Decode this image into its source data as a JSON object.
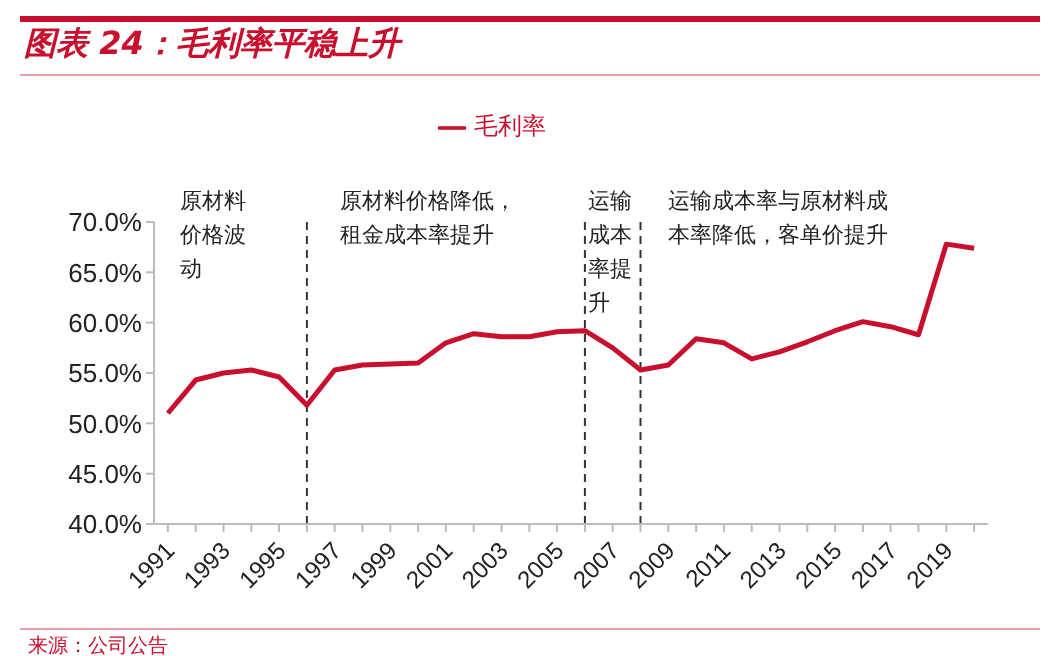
{
  "chart_data": {
    "type": "line",
    "title": "图表 24：毛利率平稳上升",
    "x": [
      1991,
      1992,
      1993,
      1994,
      1995,
      1996,
      1997,
      1998,
      1999,
      2000,
      2001,
      2002,
      2003,
      2004,
      2005,
      2006,
      2007,
      2008,
      2009,
      2010,
      2011,
      2012,
      2013,
      2014,
      2015,
      2016,
      2017,
      2018,
      2019,
      2020
    ],
    "series": [
      {
        "name": "毛利率",
        "color": "#c8102e",
        "values": [
          51.0,
          54.3,
          55.0,
          55.3,
          54.6,
          51.8,
          55.3,
          55.8,
          55.9,
          56.0,
          58.0,
          58.9,
          58.6,
          58.6,
          59.1,
          59.2,
          57.5,
          55.3,
          55.8,
          58.4,
          58.0,
          56.4,
          57.1,
          58.1,
          59.2,
          60.1,
          59.6,
          58.8,
          67.8,
          67.4
        ]
      }
    ],
    "xlim": [
      1990.5,
      2020.5
    ],
    "xticks": [
      1991,
      {
        "value": 1992,
        "label": null
      },
      1993,
      {
        "value": 1994,
        "label": null
      },
      1995,
      {
        "value": 1996,
        "label": null
      },
      1997,
      {
        "value": 1998,
        "label": null
      },
      1999,
      {
        "value": 2000,
        "label": null
      },
      2001,
      {
        "value": 2002,
        "label": null
      },
      2003,
      {
        "value": 2004,
        "label": null
      },
      2005,
      {
        "value": 2006,
        "label": null
      },
      2007,
      {
        "value": 2008,
        "label": null
      },
      2009,
      {
        "value": 2010,
        "label": null
      },
      2011,
      {
        "value": 2012,
        "label": null
      },
      2013,
      {
        "value": 2014,
        "label": null
      },
      2015,
      {
        "value": 2016,
        "label": null
      },
      2017,
      {
        "value": 2018,
        "label": null
      },
      2019,
      {
        "value": 2020,
        "label": null
      }
    ],
    "ylim": [
      40,
      70
    ],
    "yticks": [
      {
        "value": 40,
        "label": "40.0%"
      },
      {
        "value": 45,
        "label": "45.0%"
      },
      {
        "value": 50,
        "label": "50.0%"
      },
      {
        "value": 55,
        "label": "55.0%"
      },
      {
        "value": 60,
        "label": "60.0%"
      },
      {
        "value": 65,
        "label": "65.0%"
      },
      {
        "value": 70,
        "label": "70.0%"
      }
    ],
    "ref_lines": [
      {
        "axis": "x",
        "value": 1996,
        "color": "#333333",
        "line_style": "dashed"
      },
      {
        "axis": "x",
        "value": 2006,
        "color": "#333333",
        "line_style": "dashed"
      },
      {
        "axis": "x",
        "value": 2008,
        "color": "#333333",
        "line_style": "dashed"
      }
    ],
    "annotations": [
      "原材料价格波动",
      "原材料价格降低，租金成本率提升",
      "运输成本率提升",
      "运输成本率与原材料成本率降低，客单价提升",
      "来源：公司公告"
    ],
    "legend": "top",
    "marker": "none",
    "line_style": "solid"
  }
}
